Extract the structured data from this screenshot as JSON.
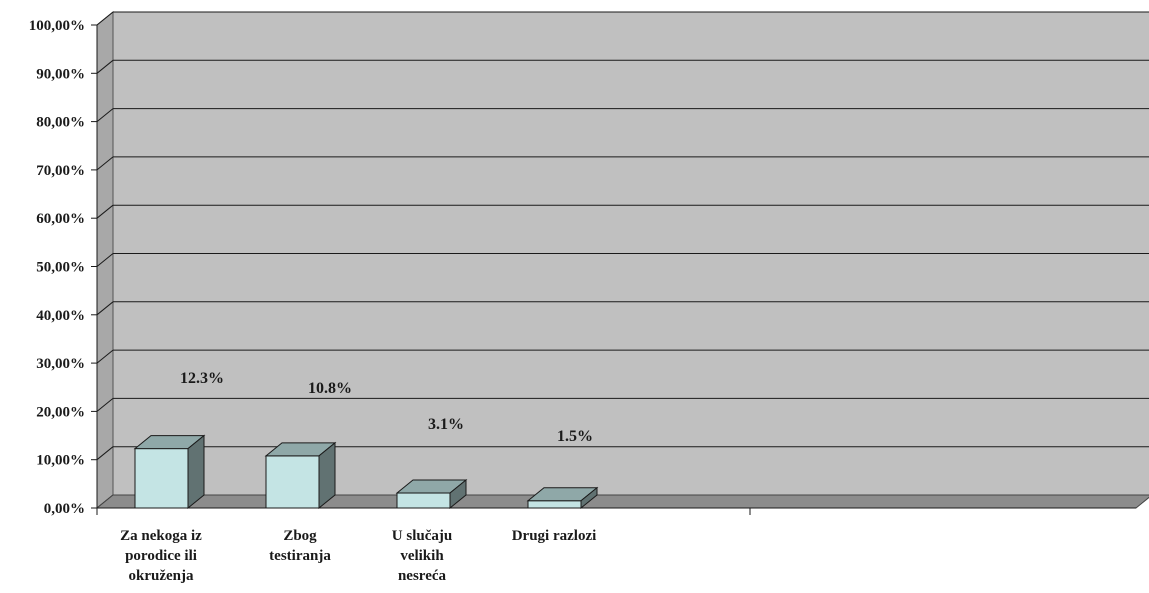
{
  "chart_data": {
    "type": "bar",
    "title": "",
    "xlabel": "",
    "ylabel": "",
    "categories": [
      [
        "Za nekoga iz",
        "porodice ili",
        "okruženja"
      ],
      [
        "Zbog",
        "testiranja"
      ],
      [
        "U slučaju",
        "velikih",
        "nesreća"
      ],
      [
        "Drugi razlozi"
      ]
    ],
    "values": [
      12.3,
      10.8,
      3.1,
      1.5
    ],
    "data_labels": [
      "12.3%",
      "10.8%",
      "3.1%",
      "1.5%"
    ],
    "ylim": [
      0,
      100
    ],
    "yticks": [
      "0,00%",
      "10,00%",
      "20,00%",
      "30,00%",
      "40,00%",
      "50,00%",
      "60,00%",
      "70,00%",
      "80,00%",
      "90,00%",
      "100,00%"
    ],
    "grid": true,
    "legend": "none",
    "colors": {
      "plot_wall": "#c0c0c0",
      "floor": "#8c8c8c",
      "bar_front": "#c4e4e4",
      "bar_top": "#8fa8a8",
      "bar_side": "#617272"
    }
  }
}
